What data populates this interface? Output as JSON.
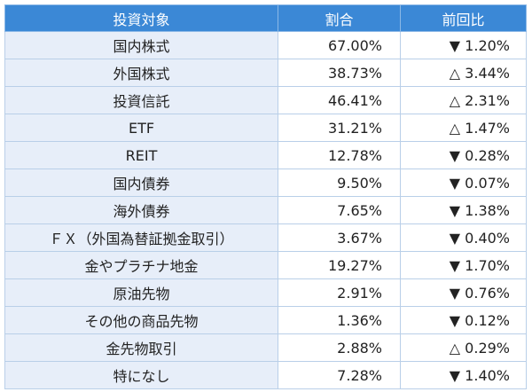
{
  "headers": [
    "投資対象",
    "割合",
    "前回比"
  ],
  "rows": [
    {
      "category": "国内株式",
      "share": "67.00%",
      "change": "▼ 1.20%"
    },
    {
      "category": "外国株式",
      "share": "38.73%",
      "change": "△ 3.44%"
    },
    {
      "category": "投資信託",
      "share": "46.41%",
      "change": "△ 2.31%"
    },
    {
      "category": "ETF",
      "share": "31.21%",
      "change": "△ 1.47%"
    },
    {
      "category": "REIT",
      "share": "12.78%",
      "change": "▼ 0.28%"
    },
    {
      "category": "国内債券",
      "share": "9.50%",
      "change": "▼ 0.07%"
    },
    {
      "category": "海外債券",
      "share": "7.65%",
      "change": "▼ 1.38%"
    },
    {
      "category": "ＦＸ（外国為替証拠金取引）",
      "share": "3.67%",
      "change": "▼ 0.40%"
    },
    {
      "category": "金やプラチナ地金",
      "share": "19.27%",
      "change": "▼ 1.70%"
    },
    {
      "category": "原油先物",
      "share": "2.91%",
      "change": "▼ 0.76%"
    },
    {
      "category": "その他の商品先物",
      "share": "1.36%",
      "change": "▼ 0.12%"
    },
    {
      "category": "金先物取引",
      "share": "2.88%",
      "change": "△ 0.29%"
    },
    {
      "category": "特になし",
      "share": "7.28%",
      "change": "▼ 1.40%"
    }
  ],
  "colors": {
    "header_bg": "#3b88d6",
    "category_bg": "#e7eef9",
    "border": "#b9cfe8"
  }
}
